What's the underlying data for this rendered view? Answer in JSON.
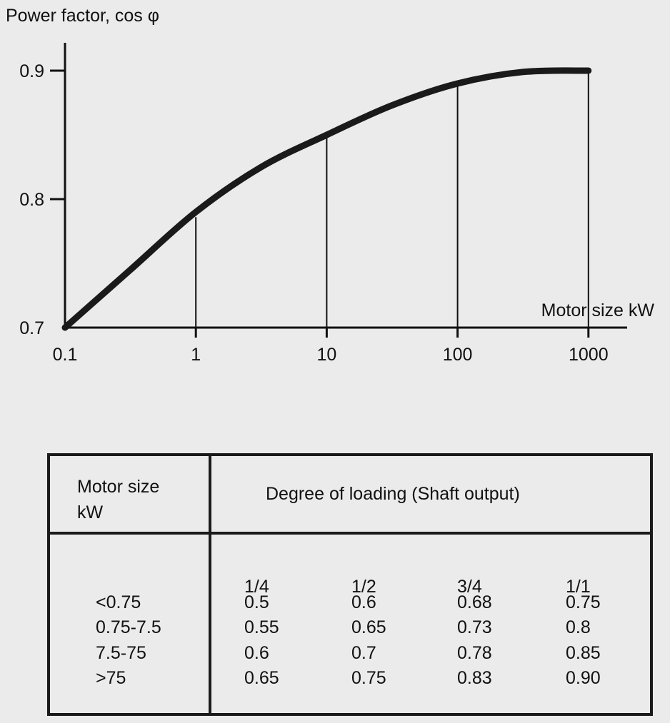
{
  "chart_data": {
    "type": "line",
    "title": "",
    "ylabel": "Power factor, cos φ",
    "xlabel": "Motor size kW",
    "xscale": "log",
    "xlim": [
      0.1,
      1000
    ],
    "ylim": [
      0.7,
      0.9
    ],
    "x_ticks": [
      "0.1",
      "1",
      "10",
      "100",
      "1000"
    ],
    "x_tick_values": [
      0.1,
      1,
      10,
      100,
      1000
    ],
    "y_ticks": [
      "0.7",
      "0.8",
      "0.9"
    ],
    "y_tick_values": [
      0.7,
      0.8,
      0.9
    ],
    "grid": false,
    "series": [
      {
        "name": "Power factor",
        "x": [
          0.1,
          0.316,
          1,
          3.16,
          10,
          31.6,
          100,
          316,
          1000
        ],
        "y": [
          0.7,
          0.745,
          0.79,
          0.825,
          0.85,
          0.873,
          0.89,
          0.899,
          0.9
        ]
      }
    ],
    "drop_lines": [
      {
        "x": 1,
        "y": 0.786
      },
      {
        "x": 10,
        "y": 0.848
      },
      {
        "x": 100,
        "y": 0.888
      },
      {
        "x": 1000,
        "y": 0.9
      }
    ]
  },
  "table": {
    "header_motor_line1": "Motor size",
    "header_motor_line2": "kW",
    "header_loading": "Degree of loading (Shaft output)",
    "columns": [
      "1/4",
      "1/2",
      "3/4",
      "1/1"
    ],
    "rows": [
      {
        "size": "<0.75",
        "values": [
          "0.5",
          "0.6",
          "0.68",
          "0.75"
        ]
      },
      {
        "size": "0.75-7.5",
        "values": [
          "0.55",
          "0.65",
          "0.73",
          "0.8"
        ]
      },
      {
        "size": "7.5-75",
        "values": [
          "0.6",
          "0.7",
          "0.78",
          "0.85"
        ]
      },
      {
        "size": ">75",
        "values": [
          "0.65",
          "0.75",
          "0.83",
          "0.90"
        ]
      }
    ]
  }
}
